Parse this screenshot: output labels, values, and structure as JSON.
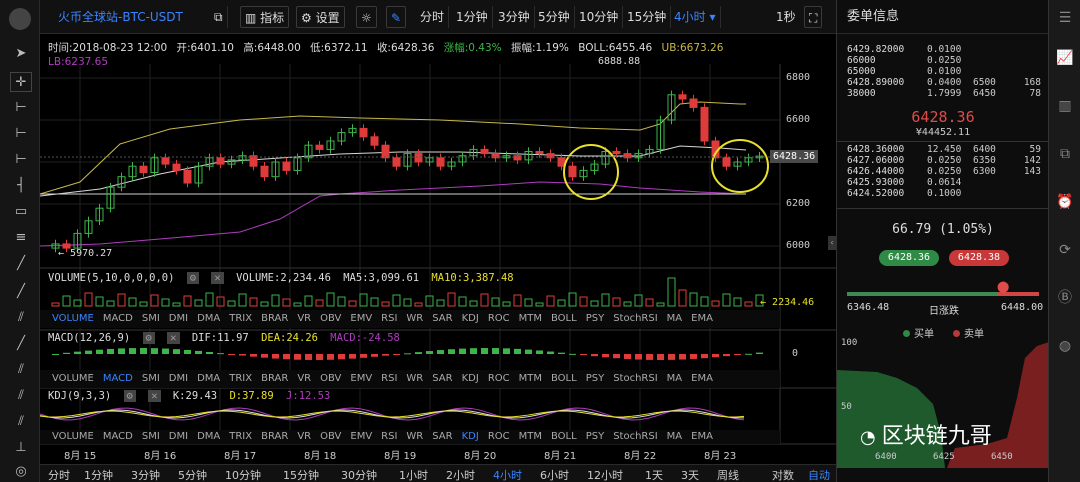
{
  "toolbar": {
    "title": "火币全球站-BTC-USDT",
    "indicator_label": "指标",
    "settings_label": "设置",
    "periods": [
      "分时",
      "1分钟",
      "3分钟",
      "5分钟",
      "10分钟",
      "15分钟"
    ],
    "active_period": "4小时",
    "interval_label": "1秒"
  },
  "info": {
    "time": "时间:2018-08-23 12:00",
    "open": "开:6401.10",
    "high": "高:6448.00",
    "low": "低:6372.11",
    "close": "收:6428.36",
    "change": "涨幅:0.43%",
    "amplitude": "振幅:1.19%",
    "boll": "BOLL:6455.46",
    "ub": "UB:6673.26",
    "lb": "LB:6237.65"
  },
  "colors": {
    "up": "#3db54a",
    "down": "#e03b3b",
    "boll_upper": "#c8b84a",
    "boll_mid": "#d8d8d8",
    "boll_lower": "#b03cc0",
    "accent": "#3a84ff"
  },
  "main_chart": {
    "y_ticks": [
      "6800",
      "6600",
      "6400",
      "6200",
      "6000"
    ],
    "current_price": "6428.36",
    "max_label": "6888.88",
    "min_label": "5970.27"
  },
  "volume": {
    "label": "VOLUME(5,10,0,0,0,0)",
    "value": "VOLUME:2,234.46",
    "ma5": "MA5:3,099.61",
    "ma10": "MA10:3,387.48",
    "last": "2234.46"
  },
  "macd": {
    "label": "MACD(12,26,9)",
    "dif": "DIF:11.97",
    "dea": "DEA:24.26",
    "macd": "MACD:-24.58",
    "zero": "0"
  },
  "kdj": {
    "label": "KDJ(9,3,3)",
    "k": "K:29.43",
    "d": "D:37.89",
    "j": "J:12.53"
  },
  "indicator_tabs": [
    "VOLUME",
    "MACD",
    "SMI",
    "DMI",
    "DMA",
    "TRIX",
    "BRAR",
    "VR",
    "OBV",
    "EMV",
    "RSI",
    "WR",
    "SAR",
    "KDJ",
    "ROC",
    "MTM",
    "BOLL",
    "PSY",
    "StochRSI",
    "MA",
    "EMA"
  ],
  "x_dates": [
    "8月 15",
    "8月 16",
    "8月 17",
    "8月 18",
    "8月 19",
    "8月 20",
    "8月 21",
    "8月 22",
    "8月 23"
  ],
  "bottom_periods": [
    "分时",
    "1分钟",
    "3分钟",
    "5分钟",
    "10分钟",
    "15分钟",
    "30分钟",
    "1小时",
    "2小时",
    "4小时",
    "6小时",
    "12小时",
    "1天",
    "3天",
    "周线"
  ],
  "bottom_active": "4小时",
  "bottom_right": [
    "对数",
    "自动"
  ],
  "orderbook": {
    "title": "委单信息",
    "asks": [
      {
        "price": "6429.82000",
        "amount": "0.0100",
        "p2": "",
        "c": ""
      },
      {
        "price": "66000",
        "amount": "0.0250",
        "p2": "",
        "c": ""
      },
      {
        "price": "65000",
        "amount": "0.0100",
        "p2": "",
        "c": ""
      },
      {
        "price": "6428.89000",
        "amount": "0.0400",
        "p2": "6500",
        "c": "168"
      },
      {
        "price": "38000",
        "amount": "1.7999",
        "p2": "6450",
        "c": "78"
      }
    ],
    "mid_price": "6428.36",
    "mid_cny": "¥44452.11",
    "bids": [
      {
        "price": "6428.36000",
        "amount": "12.450",
        "p2": "6400",
        "c": "59"
      },
      {
        "price": "6427.06000",
        "amount": "0.0250",
        "p2": "6350",
        "c": "142"
      },
      {
        "price": "6426.44000",
        "amount": "0.0250",
        "p2": "6300",
        "c": "143"
      },
      {
        "price": "6425.93000",
        "amount": "0.0614",
        "p2": "",
        "c": ""
      },
      {
        "price": "6424.52000",
        "amount": "0.1000",
        "p2": "",
        "c": ""
      }
    ]
  },
  "stats": {
    "change": "66.79 (1.05%)",
    "buy_price": "6428.36",
    "sell_price": "6428.38",
    "low": "6346.48",
    "label": "日涨跌",
    "high": "6448.00",
    "buy_label": "买单",
    "sell_label": "卖单"
  },
  "depth": {
    "y_top": "100",
    "y_mid": "50",
    "x_ticks": [
      "6400",
      "6425",
      "6450"
    ]
  },
  "watermark": "区块链九哥"
}
